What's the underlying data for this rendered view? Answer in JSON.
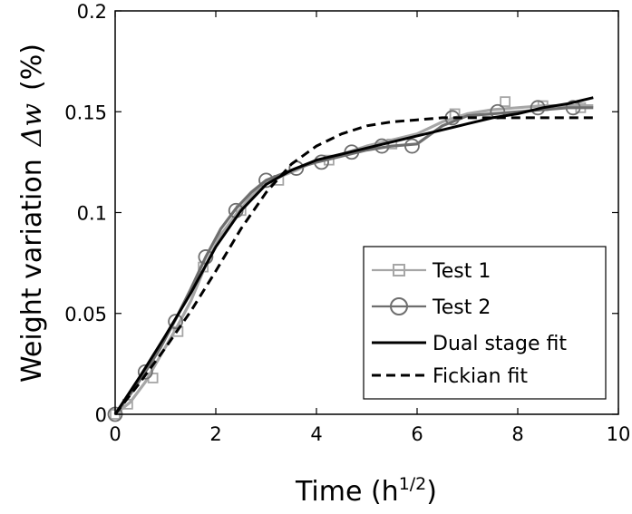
{
  "chart_data": {
    "type": "line",
    "xlabel": "Time (h",
    "xlabel_superscript": "1/2",
    "xlabel_suffix": ")",
    "ylabel": "Weight variation",
    "ylabel_symbol": "Δw",
    "ylabel_unit": "(%)",
    "xlim": [
      0,
      10
    ],
    "ylim": [
      0,
      0.2
    ],
    "x_ticks": [
      0,
      2,
      4,
      6,
      8,
      10
    ],
    "x_tick_labels": [
      "0",
      "2",
      "4",
      "6",
      "8",
      "10"
    ],
    "y_ticks": [
      0,
      0.05,
      0.1,
      0.15,
      0.2
    ],
    "y_tick_labels": [
      "0",
      "0.05",
      "0.1",
      "0.15",
      "0.2"
    ],
    "grid": false,
    "legend_position": "bottom-right",
    "colors": {
      "test1": "#a6a6a6",
      "test2": "#6e6e6e",
      "dual": "#000000",
      "fickian": "#000000"
    },
    "series": [
      {
        "name": "Test 1",
        "style": "line-square-markers",
        "x": [
          0.0,
          0.3,
          0.6,
          0.9,
          1.2,
          1.5,
          1.8,
          2.1,
          2.4,
          2.7,
          3.0,
          3.3,
          3.6,
          4.0,
          4.5,
          5.0,
          5.5,
          6.0,
          6.5,
          7.0,
          7.5,
          8.0,
          8.5,
          9.0,
          9.5
        ],
        "y": [
          0.0,
          0.006,
          0.016,
          0.029,
          0.042,
          0.056,
          0.074,
          0.089,
          0.099,
          0.108,
          0.115,
          0.118,
          0.121,
          0.126,
          0.129,
          0.133,
          0.136,
          0.139,
          0.145,
          0.149,
          0.151,
          0.152,
          0.153,
          0.153,
          0.153
        ],
        "marker_x": [
          0.0,
          0.25,
          0.75,
          1.25,
          1.75,
          2.5,
          3.25,
          4.25,
          5.5,
          6.75,
          7.75,
          8.5,
          9.25
        ],
        "marker_y": [
          0.0,
          0.005,
          0.018,
          0.041,
          0.073,
          0.101,
          0.116,
          0.126,
          0.134,
          0.149,
          0.155,
          0.153,
          0.152
        ]
      },
      {
        "name": "Test 2",
        "style": "line-circle-markers",
        "x": [
          0.0,
          0.3,
          0.6,
          0.9,
          1.2,
          1.5,
          1.8,
          2.1,
          2.4,
          2.7,
          3.0,
          3.3,
          3.6,
          4.0,
          4.5,
          5.0,
          5.5,
          6.0,
          6.5,
          7.0,
          7.5,
          8.0,
          8.5,
          9.0,
          9.5
        ],
        "y": [
          0.0,
          0.01,
          0.021,
          0.033,
          0.047,
          0.062,
          0.078,
          0.092,
          0.102,
          0.11,
          0.116,
          0.119,
          0.122,
          0.125,
          0.128,
          0.131,
          0.133,
          0.134,
          0.143,
          0.148,
          0.149,
          0.15,
          0.151,
          0.152,
          0.152
        ],
        "marker_x": [
          0.0,
          0.6,
          1.2,
          1.8,
          2.4,
          3.0,
          3.6,
          4.1,
          4.7,
          5.3,
          5.9,
          6.7,
          7.6,
          8.4,
          9.1
        ],
        "marker_y": [
          0.0,
          0.021,
          0.046,
          0.078,
          0.101,
          0.116,
          0.122,
          0.125,
          0.13,
          0.133,
          0.133,
          0.147,
          0.15,
          0.152,
          0.152
        ]
      },
      {
        "name": "Dual stage fit",
        "style": "solid",
        "x": [
          0.0,
          0.5,
          1.0,
          1.5,
          2.0,
          2.5,
          3.0,
          3.5,
          4.0,
          4.5,
          5.0,
          5.5,
          6.0,
          6.5,
          7.0,
          7.5,
          8.0,
          8.5,
          9.0,
          9.5
        ],
        "y": [
          0.0,
          0.019,
          0.039,
          0.06,
          0.083,
          0.101,
          0.114,
          0.121,
          0.126,
          0.129,
          0.132,
          0.135,
          0.138,
          0.141,
          0.144,
          0.147,
          0.149,
          0.152,
          0.154,
          0.157
        ]
      },
      {
        "name": "Fickian fit",
        "style": "dashed",
        "x": [
          0.0,
          0.5,
          1.0,
          1.5,
          2.0,
          2.5,
          3.0,
          3.5,
          4.0,
          4.5,
          5.0,
          5.5,
          6.0,
          6.5,
          7.0,
          7.5,
          8.0,
          8.5,
          9.0,
          9.5
        ],
        "y": [
          0.0,
          0.016,
          0.033,
          0.051,
          0.071,
          0.092,
          0.11,
          0.124,
          0.133,
          0.139,
          0.143,
          0.145,
          0.146,
          0.147,
          0.147,
          0.147,
          0.147,
          0.147,
          0.147,
          0.147
        ]
      }
    ]
  }
}
